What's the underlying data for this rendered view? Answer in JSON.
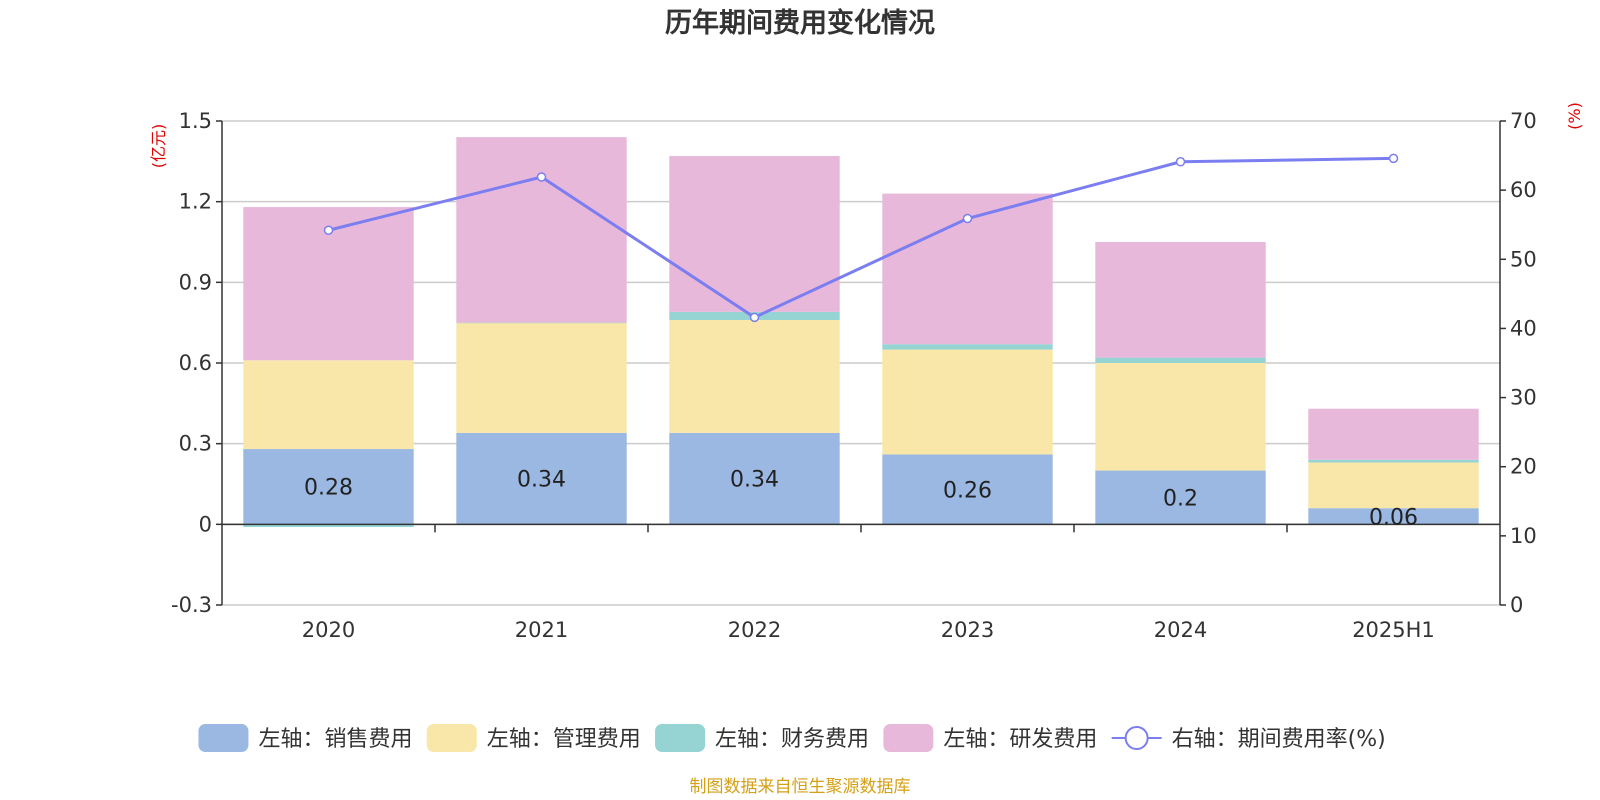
{
  "chart_data": {
    "type": "bar",
    "title": "历年期间费用变化情况",
    "categories": [
      "2020",
      "2021",
      "2022",
      "2023",
      "2024",
      "2025H1"
    ],
    "left_axis": {
      "unit": "(亿元)",
      "ylim": [
        -0.3,
        1.5
      ],
      "ticks": [
        "-0.3",
        "0",
        "0.3",
        "0.6",
        "0.9",
        "1.2",
        "1.5"
      ]
    },
    "right_axis": {
      "unit": "(%)",
      "ylim": [
        0,
        70
      ],
      "ticks": [
        "0",
        "10",
        "20",
        "30",
        "40",
        "50",
        "60",
        "70"
      ]
    },
    "series": [
      {
        "name": "左轴：销售费用",
        "type": "bar",
        "axis": "left",
        "color": "#9bb8e2",
        "values": [
          0.28,
          0.34,
          0.34,
          0.26,
          0.2,
          0.06
        ],
        "labels": [
          "0.28",
          "0.34",
          "0.34",
          "0.26",
          "0.2",
          "0.06"
        ]
      },
      {
        "name": "左轴：管理费用",
        "type": "bar",
        "axis": "left",
        "color": "#f8e7a8",
        "values": [
          0.33,
          0.41,
          0.42,
          0.39,
          0.4,
          0.17
        ]
      },
      {
        "name": "左轴：财务费用",
        "type": "bar",
        "axis": "left",
        "color": "#96d4d4",
        "values": [
          -0.01,
          0.0,
          0.03,
          0.02,
          0.02,
          0.01
        ]
      },
      {
        "name": "左轴：研发费用",
        "type": "bar",
        "axis": "left",
        "color": "#e8b8da",
        "values": [
          0.57,
          0.69,
          0.58,
          0.56,
          0.43,
          0.19
        ]
      },
      {
        "name": "右轴：期间费用率(%)",
        "type": "line",
        "axis": "right",
        "color": "#7b7ef0",
        "values": [
          54.2,
          61.9,
          41.6,
          55.9,
          64.1,
          64.6
        ]
      }
    ],
    "grid": true,
    "legend_position": "bottom"
  },
  "source": "制图数据来自恒生聚源数据库"
}
